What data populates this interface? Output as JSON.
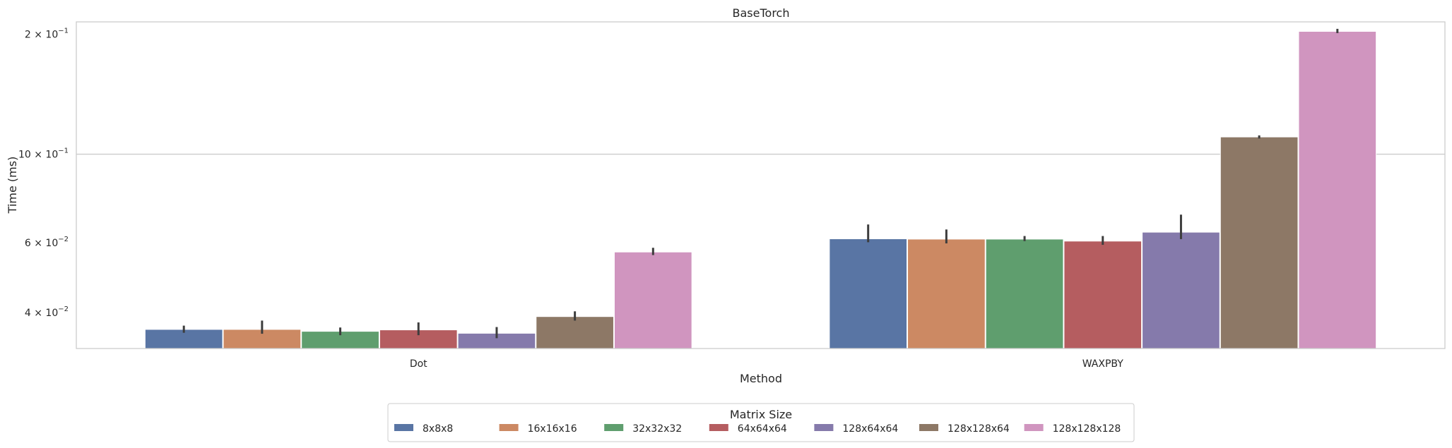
{
  "chart_data": {
    "type": "bar",
    "title": "BaseTorch",
    "xlabel": "Method",
    "ylabel": "Time (ms)",
    "yscale": "log",
    "ylim": [
      0.0325,
      0.215
    ],
    "grid": "horizontal",
    "categories": [
      "Dot",
      "WAXPBY"
    ],
    "yticks": [
      {
        "value": 0.04,
        "mantissa": "4",
        "exp": "−2"
      },
      {
        "value": 0.06,
        "mantissa": "6",
        "exp": "−2"
      },
      {
        "value": 0.1,
        "mantissa": "10",
        "exp": "−1"
      },
      {
        "value": 0.2,
        "mantissa": "2",
        "exp": "−1"
      }
    ],
    "series": [
      {
        "name": "8x8x8",
        "color": "#5975a4",
        "values": [
          0.0363,
          0.0613
        ],
        "err": [
          [
            0.0356,
            0.0371
          ],
          [
            0.0601,
            0.0666
          ]
        ]
      },
      {
        "name": "16x16x16",
        "color": "#cc8963",
        "values": [
          0.0363,
          0.0612
        ],
        "err": [
          [
            0.0354,
            0.0382
          ],
          [
            0.0597,
            0.0647
          ]
        ]
      },
      {
        "name": "32x32x32",
        "color": "#5f9e6e",
        "values": [
          0.0359,
          0.0612
        ],
        "err": [
          [
            0.0351,
            0.0367
          ],
          [
            0.0605,
            0.0623
          ]
        ]
      },
      {
        "name": "64x64x64",
        "color": "#b55d60",
        "values": [
          0.0362,
          0.0605
        ],
        "err": [
          [
            0.0351,
            0.0378
          ],
          [
            0.0592,
            0.0623
          ]
        ]
      },
      {
        "name": "128x64x64",
        "color": "#857aab",
        "values": [
          0.0355,
          0.0637
        ],
        "err": [
          [
            0.0345,
            0.0368
          ],
          [
            0.0612,
            0.0705
          ]
        ]
      },
      {
        "name": "128x128x64",
        "color": "#8d7866",
        "values": [
          0.0391,
          0.1105
        ],
        "err": [
          [
            0.0382,
            0.0403
          ],
          [
            0.1095,
            0.1115
          ]
        ]
      },
      {
        "name": "128x128x128",
        "color": "#d095bf",
        "values": [
          0.0568,
          0.2035
        ],
        "err": [
          [
            0.0558,
            0.0582
          ],
          [
            0.2015,
            0.2065
          ]
        ]
      }
    ],
    "legend": {
      "title": "Matrix Size",
      "placement": "bottom-center"
    }
  }
}
